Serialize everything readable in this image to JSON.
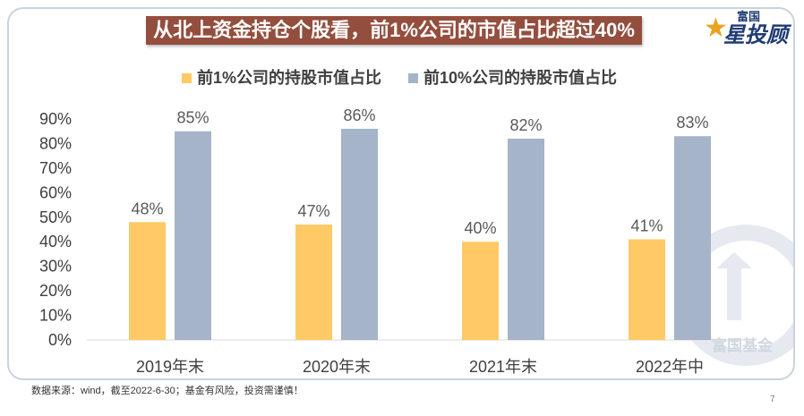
{
  "slide": {
    "logo": {
      "brand": "富国",
      "product": "星投顾",
      "icon": "star-icon"
    },
    "footnote": "数据来源：wind，截至2022-6-30；基金有风险，投资需谨慎！",
    "page_number": "7",
    "watermark": "富国基金"
  },
  "colors": {
    "title_banner": "#944E3D",
    "frame": "#C9D3DE",
    "logo_navy": "#1F3B73",
    "logo_star": "#E9A321"
  },
  "chart_data": {
    "type": "bar",
    "title": "从北上资金持仓个股看，前1%公司的市值占比超过40%",
    "categories": [
      "2019年末",
      "2020年末",
      "2021年末",
      "2022年中"
    ],
    "series": [
      {
        "name": "前1%公司的持股市值占比",
        "values": [
          48,
          47,
          40,
          41
        ],
        "labels": [
          "48%",
          "47%",
          "40%",
          "41%"
        ],
        "color": "#FFC966"
      },
      {
        "name": "前10%公司的持股市值占比",
        "values": [
          85,
          86,
          82,
          83
        ],
        "labels": [
          "85%",
          "86%",
          "82%",
          "83%"
        ],
        "color": "#A5B4C8"
      }
    ],
    "ylim": [
      0,
      90
    ],
    "yticks": [
      0,
      10,
      20,
      30,
      40,
      50,
      60,
      70,
      80,
      90
    ],
    "ytick_labels": [
      "0%",
      "10%",
      "20%",
      "30%",
      "40%",
      "50%",
      "60%",
      "70%",
      "80%",
      "90%"
    ],
    "grid": false,
    "legend": "top"
  }
}
